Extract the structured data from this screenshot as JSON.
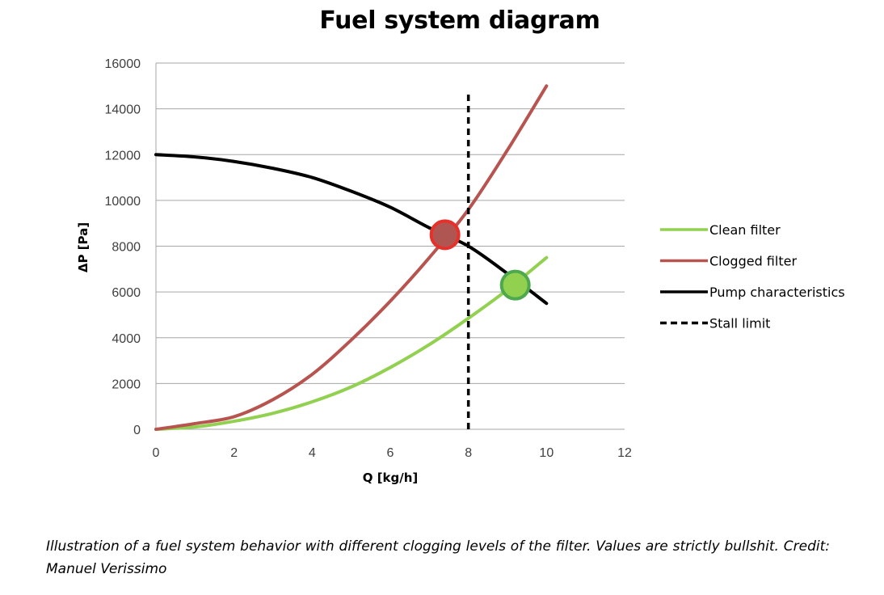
{
  "chart_data": {
    "type": "line",
    "title": "Fuel system diagram",
    "xlabel": "Q [kg/h]",
    "ylabel": "ΔP [Pa]",
    "xlim": [
      0,
      12
    ],
    "ylim": [
      0,
      16000
    ],
    "xticks": [
      0,
      2,
      4,
      6,
      8,
      10,
      12
    ],
    "yticks": [
      0,
      2000,
      4000,
      6000,
      8000,
      10000,
      12000,
      14000,
      16000
    ],
    "grid": "horizontal",
    "legend_position": "right",
    "series": [
      {
        "name": "Clean filter",
        "color": "#92D050",
        "style": "solid",
        "x": [
          0,
          1,
          2,
          3,
          4,
          5,
          6,
          7,
          8,
          9,
          10
        ],
        "y": [
          0,
          100,
          350,
          700,
          1200,
          1850,
          2700,
          3700,
          4850,
          6100,
          7500
        ]
      },
      {
        "name": "Clogged filter",
        "color": "#B85450",
        "style": "solid",
        "x": [
          0,
          1,
          2,
          3,
          4,
          5,
          6,
          7,
          8,
          9,
          10
        ],
        "y": [
          0,
          250,
          550,
          1300,
          2400,
          3900,
          5600,
          7500,
          9600,
          12200,
          15000
        ]
      },
      {
        "name": "Pump characteristics",
        "color": "#000000",
        "style": "solid",
        "x": [
          0,
          1,
          2,
          3,
          4,
          5,
          6,
          7,
          8,
          9,
          10
        ],
        "y": [
          12000,
          11900,
          11700,
          11400,
          11000,
          10400,
          9700,
          8800,
          8000,
          6800,
          5500
        ]
      },
      {
        "name": "Stall limit",
        "color": "#000000",
        "style": "dashed",
        "x": [
          8,
          8
        ],
        "y": [
          0,
          14800
        ]
      }
    ],
    "annotations": [
      {
        "type": "marker",
        "label": "Clogged filter operating point",
        "x": 7.4,
        "y": 8500,
        "fill": "#B05652",
        "stroke": "#E8302A"
      },
      {
        "type": "marker",
        "label": "Clean filter operating point",
        "x": 9.2,
        "y": 6300,
        "fill": "#92D050",
        "stroke": "#4EA94E"
      }
    ]
  },
  "caption": "Illustration of a fuel system behavior with different clogging levels of the filter. Values are strictly bullshit. Credit: Manuel Verissimo"
}
